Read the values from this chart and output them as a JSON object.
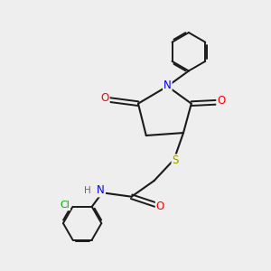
{
  "background_color": "#eeeeee",
  "bond_color": "#1a1a1a",
  "atom_colors": {
    "N": "#0000ff",
    "O": "#ff0000",
    "S": "#999900",
    "Cl": "#00aa00",
    "H": "#666666"
  },
  "figsize": [
    3.0,
    3.0
  ],
  "dpi": 100
}
